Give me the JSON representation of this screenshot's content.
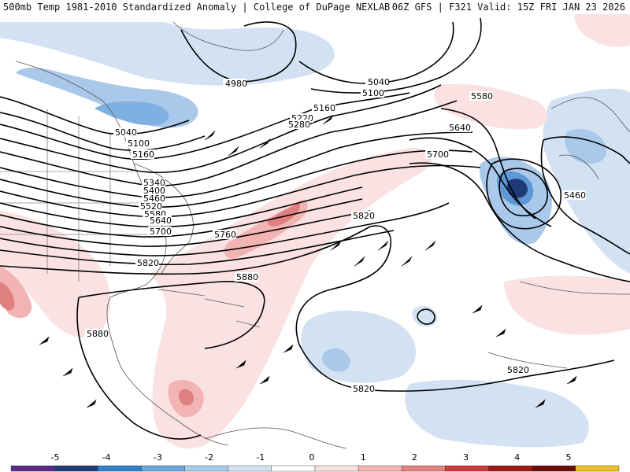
{
  "title": {
    "left": "500mb Temp 1981-2010 Standardized Anomaly | College of DuPage NEXLAB",
    "right": "06Z GFS | F321 Valid: 15Z FRI JAN 23 2026"
  },
  "contour_labels": [
    "4980",
    "5040",
    "5100",
    "5160",
    "5220",
    "5280",
    "5340",
    "5400",
    "5460",
    "5520",
    "5580",
    "5640",
    "5700",
    "5760",
    "5820",
    "5880",
    "5040",
    "5100",
    "5160",
    "5580",
    "5640",
    "5700",
    "5460",
    "5820",
    "5880",
    "5820",
    "5820"
  ],
  "scale": {
    "ticks": [
      "-5",
      "-4",
      "-3",
      "-2",
      "-1",
      "0",
      "1",
      "2",
      "3",
      "4",
      "5"
    ],
    "colors": [
      "#5b2a86",
      "#1f3a75",
      "#2f80c8",
      "#6aa7dc",
      "#a9cbeb",
      "#d4e4f4",
      "#ffffff",
      "#fbe0e0",
      "#f4b2b2",
      "#e58080",
      "#cf3a3a",
      "#a01818",
      "#6e0a0a",
      "#f0c020"
    ]
  },
  "colors": {
    "cold_light": "#d2e2f3",
    "cold_mid": "#a9c8ea",
    "cold_strong": "#5d97d6",
    "cold_core": "#1f3a75",
    "warm_light": "#fbe2e2",
    "warm_mid": "#f2b3b3",
    "warm_strong": "#e07f7f",
    "contour": "#000000",
    "border": "#555555"
  }
}
